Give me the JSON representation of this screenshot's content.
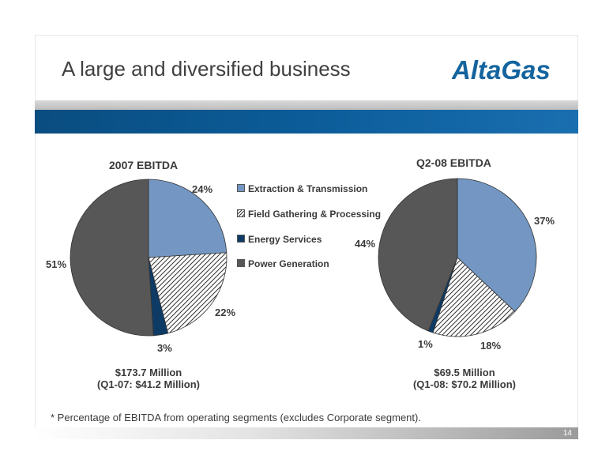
{
  "slide": {
    "title": "A large and diversified business",
    "logo_text": "AltaGas",
    "footnote": "* Percentage of EBITDA from operating segments (excludes Corporate segment).",
    "page_number": "14"
  },
  "colors": {
    "extraction": "#7397c2",
    "field_gathering": "#ffffff",
    "energy_services": "#0d3b66",
    "power_generation": "#575757",
    "logo": "#14649e"
  },
  "chart_data": [
    {
      "type": "pie",
      "title": "2007 EBITDA",
      "categories": [
        "Extraction & Transmission",
        "Field Gathering & Processing",
        "Energy Services",
        "Power Generation"
      ],
      "values": [
        24,
        22,
        3,
        51
      ],
      "labels": [
        "24%",
        "22%",
        "3%",
        "51%"
      ],
      "caption_line1": "$173.7 Million",
      "caption_line2": "(Q1-07: $41.2 Million)",
      "legend_position": "right"
    },
    {
      "type": "pie",
      "title": "Q2-08 EBITDA",
      "categories": [
        "Extraction & Transmission",
        "Field Gathering & Processing",
        "Energy Services",
        "Power Generation"
      ],
      "values": [
        37,
        18,
        1,
        44
      ],
      "labels": [
        "37%",
        "18%",
        "1%",
        "44%"
      ],
      "caption_line1": "$69.5 Million",
      "caption_line2": "(Q1-08:  $70.2 Million)",
      "legend_position": "left"
    }
  ],
  "legend": {
    "items": [
      "Extraction & Transmission",
      "Field Gathering & Processing",
      "Energy Services",
      "Power Generation"
    ]
  }
}
